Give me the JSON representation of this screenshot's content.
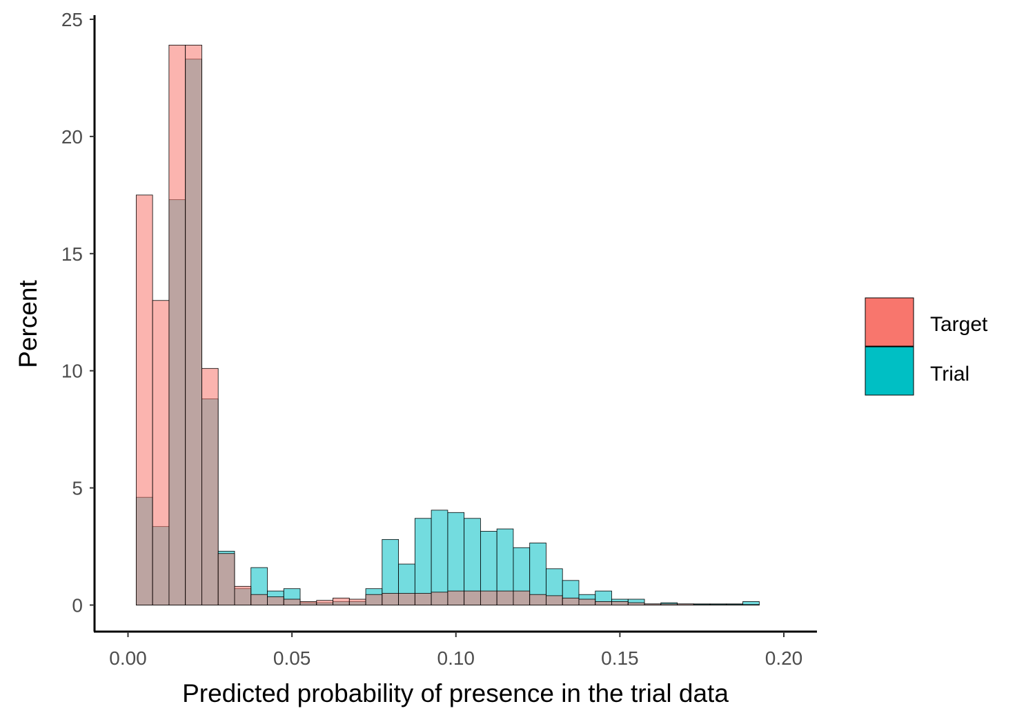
{
  "chart_data": {
    "type": "bar",
    "subtype": "overlaid-histogram",
    "xlabel": "Predicted probability of presence in the trial data",
    "ylabel": "Percent",
    "xlim": [
      -0.01,
      0.21
    ],
    "ylim": [
      -1.2,
      25.2
    ],
    "x_ticks": [
      0.0,
      0.05,
      0.1,
      0.15,
      0.2
    ],
    "x_tick_labels": [
      "0.00",
      "0.05",
      "0.10",
      "0.15",
      "0.20"
    ],
    "y_ticks": [
      0,
      5,
      10,
      15,
      20,
      25
    ],
    "y_tick_labels": [
      "0",
      "5",
      "10",
      "15",
      "20",
      "25"
    ],
    "bin_width": 0.005,
    "bin_starts": [
      0.0025,
      0.0075,
      0.0125,
      0.0175,
      0.0225,
      0.0275,
      0.0325,
      0.0375,
      0.0425,
      0.0475,
      0.0525,
      0.0575,
      0.0625,
      0.0675,
      0.0725,
      0.0775,
      0.0825,
      0.0875,
      0.0925,
      0.0975,
      0.1025,
      0.1075,
      0.1125,
      0.1175,
      0.1225,
      0.1275,
      0.1325,
      0.1375,
      0.1425,
      0.1475,
      0.1525,
      0.1575,
      0.1625,
      0.1675,
      0.1725,
      0.1775,
      0.1825,
      0.1875
    ],
    "series": [
      {
        "name": "Target",
        "color": "#F8766D",
        "values": [
          17.5,
          13.0,
          23.9,
          23.9,
          10.1,
          2.2,
          0.8,
          0.45,
          0.35,
          0.25,
          0.15,
          0.2,
          0.3,
          0.25,
          0.45,
          0.5,
          0.5,
          0.5,
          0.55,
          0.6,
          0.6,
          0.6,
          0.6,
          0.6,
          0.45,
          0.4,
          0.3,
          0.25,
          0.15,
          0.15,
          0.1,
          0.05,
          0.05,
          0.05,
          0.02,
          0.02,
          0.02,
          0.02
        ]
      },
      {
        "name": "Trial",
        "color": "#00BFC4",
        "values": [
          4.6,
          3.35,
          17.3,
          23.3,
          8.8,
          2.3,
          0.7,
          1.6,
          0.6,
          0.7,
          0.1,
          0.1,
          0.15,
          0.15,
          0.7,
          2.8,
          1.75,
          3.7,
          4.05,
          3.95,
          3.7,
          3.15,
          3.25,
          2.45,
          2.65,
          1.55,
          1.05,
          0.45,
          0.6,
          0.25,
          0.25,
          0.05,
          0.1,
          0.05,
          0.05,
          0.05,
          0.05,
          0.15
        ]
      }
    ],
    "legend_position": "right"
  },
  "legend": {
    "items": [
      {
        "label": "Target",
        "color": "#F8766D"
      },
      {
        "label": "Trial",
        "color": "#00BFC4"
      }
    ]
  }
}
